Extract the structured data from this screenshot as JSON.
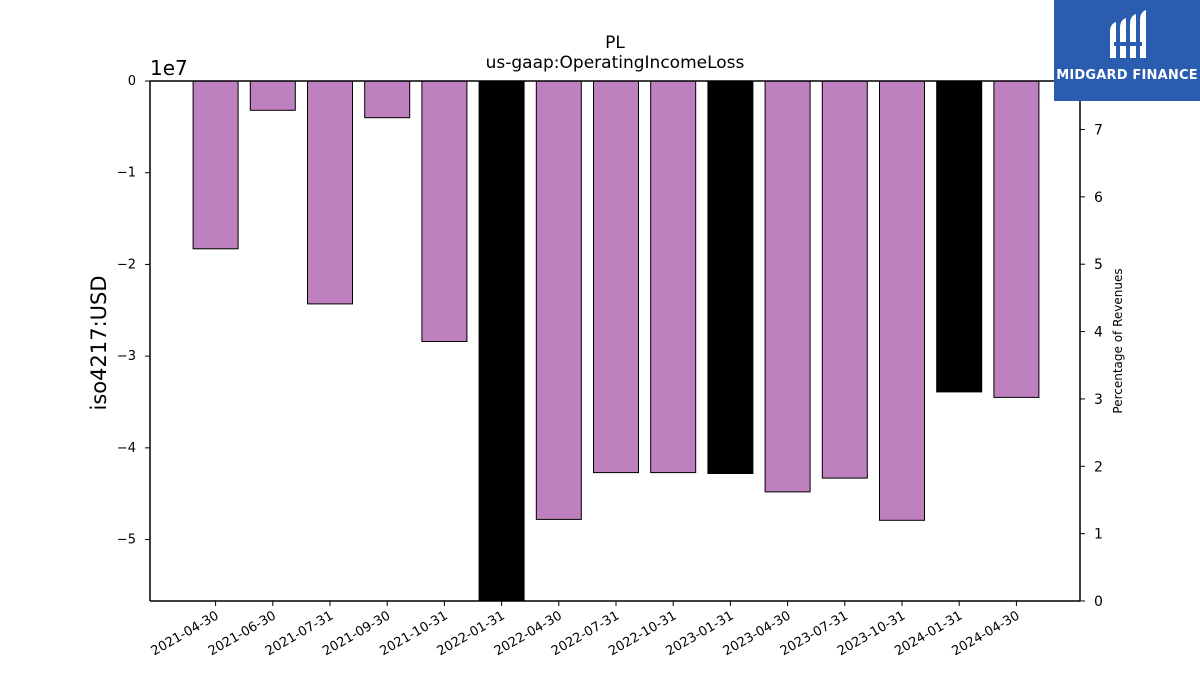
{
  "brand": {
    "logo_text": "MIDGARD FINANCE",
    "logo_color": "#2a5caf"
  },
  "chart_data": {
    "type": "bar",
    "title": "PL",
    "subtitle": "us-gaap:OperatingIncomeLoss",
    "ylabel": "iso4217:USD",
    "y_offset_label": "1e7",
    "y2label": "Percentage of Revenues",
    "categories": [
      "2021-04-30",
      "2021-06-30",
      "2021-07-31",
      "2021-09-30",
      "2021-10-31",
      "2022-01-31",
      "2022-04-30",
      "2022-07-31",
      "2022-10-31",
      "2023-01-31",
      "2023-04-30",
      "2023-07-31",
      "2023-10-31",
      "2024-01-31",
      "2024-04-30"
    ],
    "values": [
      -18300000,
      -3200000,
      -24300000,
      -4000000,
      -28400000,
      -56700000,
      -47800000,
      -42700000,
      -42700000,
      -42800000,
      -44800000,
      -43300000,
      -47900000,
      -33900000,
      -34500000
    ],
    "colors": [
      "#bf80bf",
      "#bf80bf",
      "#bf80bf",
      "#bf80bf",
      "#bf80bf",
      "#000000",
      "#bf80bf",
      "#bf80bf",
      "#bf80bf",
      "#000000",
      "#bf80bf",
      "#bf80bf",
      "#bf80bf",
      "#000000",
      "#bf80bf"
    ],
    "ylim": [
      -56700000,
      0
    ],
    "yticks": [
      0,
      -10000000,
      -20000000,
      -30000000,
      -40000000,
      -50000000
    ],
    "ytick_labels": [
      "0",
      "−1",
      "−2",
      "−3",
      "−4",
      "−5"
    ],
    "y2lim": [
      0,
      7.72
    ],
    "y2ticks": [
      0,
      1,
      2,
      3,
      4,
      5,
      6,
      7
    ],
    "y2tick_labels": [
      "0",
      "1",
      "2",
      "3",
      "4",
      "5",
      "6",
      "7"
    ],
    "grid": false,
    "legend": "none"
  }
}
